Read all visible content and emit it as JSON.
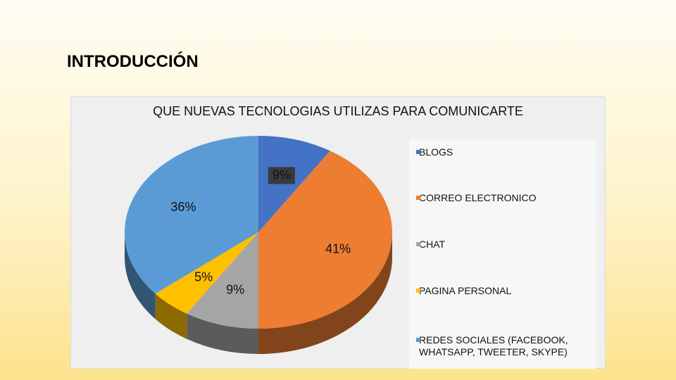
{
  "slide": {
    "title": "INTRODUCCIÓN"
  },
  "chart_data": {
    "type": "pie",
    "title": "QUE NUEVAS TECNOLOGIAS UTILIZAS PARA COMUNICARTE",
    "categories": [
      "BLOGS",
      "CORREO ELECTRONICO",
      "CHAT",
      "PAGINA PERSONAL",
      "REDES SOCIALES (FACEBOOK, WHATSAPP, TWEETER, SKYPE)"
    ],
    "values": [
      9,
      41,
      9,
      5,
      36
    ],
    "data_labels": [
      "9%",
      "41%",
      "9%",
      "5%",
      "36%"
    ],
    "colors": [
      "#4472C4",
      "#ED7D31",
      "#A5A5A5",
      "#FFC000",
      "#5B9BD5"
    ],
    "legend_position": "right",
    "style": "3d"
  }
}
